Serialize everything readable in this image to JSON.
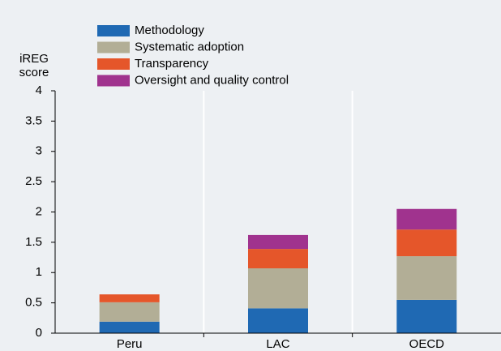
{
  "chart_data": {
    "type": "stacked_bar",
    "y_label": "iREG score",
    "categories": [
      "Peru",
      "LAC",
      "OECD"
    ],
    "series": [
      {
        "name": "Methodology",
        "color": "#1f69b3",
        "values": [
          0.19,
          0.41,
          0.55
        ]
      },
      {
        "name": "Systematic adoption",
        "color": "#b2ae96",
        "values": [
          0.32,
          0.66,
          0.72
        ]
      },
      {
        "name": "Transparency",
        "color": "#e5562a",
        "values": [
          0.13,
          0.32,
          0.44
        ]
      },
      {
        "name": "Oversight and quality control",
        "color": "#a0338e",
        "values": [
          0,
          0.23,
          0.34
        ]
      }
    ],
    "ylim": [
      0,
      4
    ],
    "yticks": [
      0,
      0.5,
      1,
      1.5,
      2,
      2.5,
      3,
      3.5,
      4
    ],
    "legend": "top-left"
  }
}
